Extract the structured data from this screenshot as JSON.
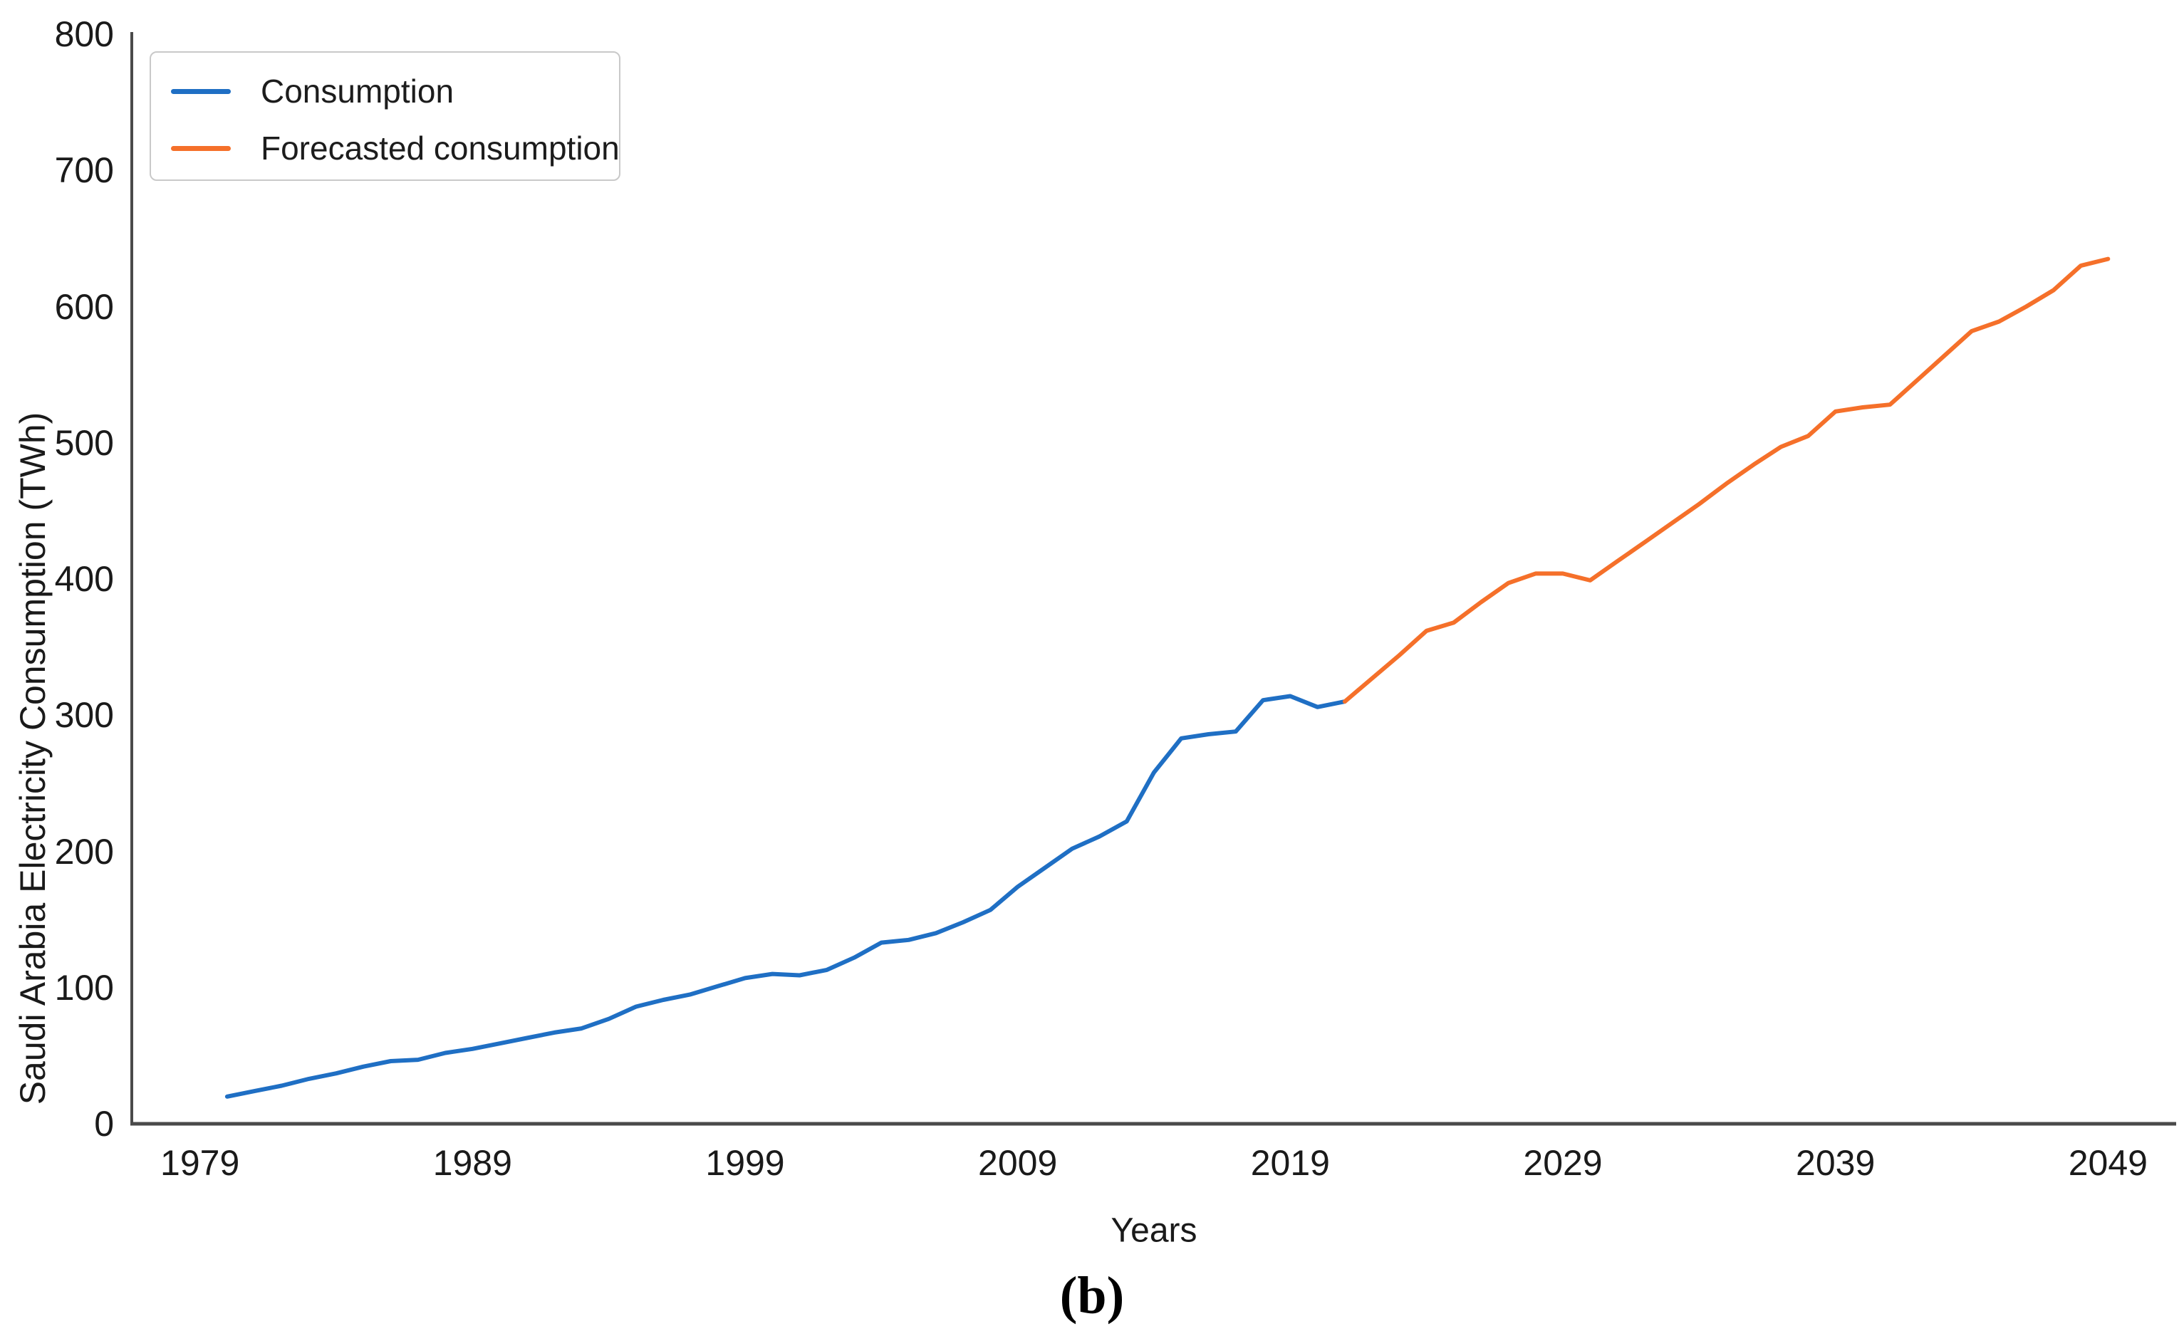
{
  "figure": {
    "caption": "(b)",
    "background": "#ffffff",
    "axis_color": "#4a4a4a"
  },
  "chart_data": {
    "type": "line",
    "title": "",
    "xlabel": "Years",
    "ylabel": "Saudi Arabia Electricity Consumption (TWh)",
    "xlim": [
      1976.5,
      2051.5
    ],
    "ylim": [
      0,
      800
    ],
    "xticks": [
      1979,
      1989,
      1999,
      2009,
      2019,
      2029,
      2039,
      2049
    ],
    "yticks": [
      0,
      100,
      200,
      300,
      400,
      500,
      600,
      700,
      800
    ],
    "grid": false,
    "legend_position": "upper-left",
    "series": [
      {
        "name": "Consumption",
        "color": "#1f6fc4",
        "x": [
          1980,
          1981,
          1982,
          1983,
          1984,
          1985,
          1986,
          1987,
          1988,
          1989,
          1990,
          1991,
          1992,
          1993,
          1994,
          1995,
          1996,
          1997,
          1998,
          1999,
          2000,
          2001,
          2002,
          2003,
          2004,
          2005,
          2006,
          2007,
          2008,
          2009,
          2010,
          2011,
          2012,
          2013,
          2014,
          2015,
          2016,
          2017,
          2018,
          2019,
          2020,
          2021
        ],
        "y": [
          20,
          24,
          28,
          33,
          37,
          42,
          46,
          47,
          52,
          55,
          59,
          63,
          67,
          70,
          77,
          86,
          91,
          95,
          101,
          107,
          110,
          109,
          113,
          122,
          133,
          135,
          140,
          148,
          157,
          174,
          188,
          202,
          211,
          222,
          258,
          283,
          286,
          288,
          311,
          314,
          306,
          310
        ]
      },
      {
        "name": "Forecasted consumption",
        "color": "#f5702a",
        "x": [
          2021,
          2022,
          2023,
          2024,
          2025,
          2026,
          2027,
          2028,
          2029,
          2030,
          2031,
          2032,
          2033,
          2034,
          2035,
          2036,
          2037,
          2038,
          2039,
          2040,
          2041,
          2042,
          2043,
          2044,
          2045,
          2046,
          2047,
          2048,
          2049
        ],
        "y": [
          310,
          327,
          344,
          362,
          368,
          383,
          397,
          404,
          404,
          399,
          413,
          427,
          441,
          455,
          470,
          484,
          497,
          505,
          523,
          526,
          528,
          546,
          564,
          582,
          589,
          600,
          612,
          630,
          635
        ]
      }
    ]
  }
}
